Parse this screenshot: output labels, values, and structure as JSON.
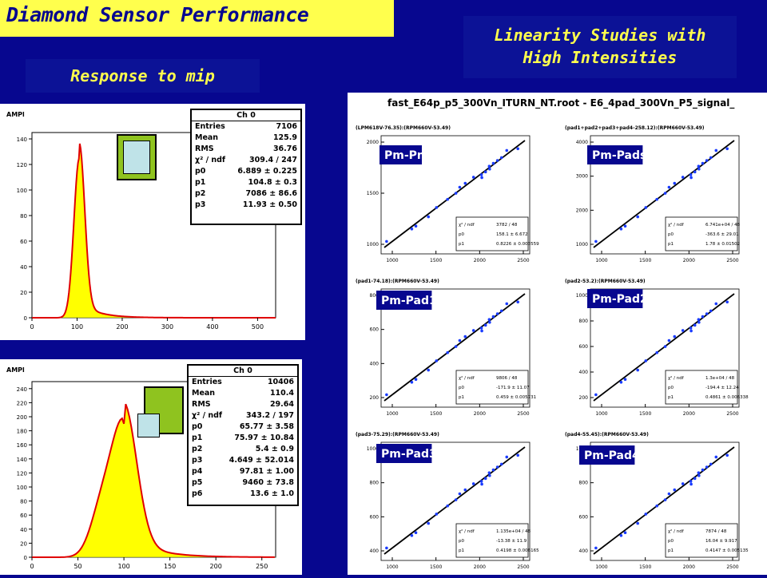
{
  "header": {
    "title": "Diamond Sensor Performance",
    "subtitle": "Response to mip",
    "right_title_line1": "Linearity Studies with",
    "right_title_line2": "High  Intensities"
  },
  "hist1": {
    "y_axis_label": "AMPl",
    "stats_title": "Ch 0",
    "stats": [
      {
        "k": "Entries",
        "v": "7106"
      },
      {
        "k": "Mean",
        "v": "125.9"
      },
      {
        "k": "RMS",
        "v": "36.76"
      },
      {
        "k": "χ² / ndf",
        "v": "309.4 / 247"
      },
      {
        "k": "p0",
        "v": "6.889 ± 0.225"
      },
      {
        "k": "p1",
        "v": "104.8 ± 0.3"
      },
      {
        "k": "p2",
        "v": "7086 ± 86.6"
      },
      {
        "k": "p3",
        "v": "11.93 ± 0.50"
      }
    ],
    "x_ticks": [
      "0",
      "100",
      "200",
      "300",
      "400",
      "500"
    ],
    "y_ticks": [
      "0",
      "20",
      "40",
      "60",
      "80",
      "100",
      "120",
      "140"
    ]
  },
  "hist2": {
    "y_axis_label": "AMPl",
    "stats_title": "Ch 0",
    "stats": [
      {
        "k": "Entries",
        "v": "10406"
      },
      {
        "k": "Mean",
        "v": "110.4"
      },
      {
        "k": "RMS",
        "v": "29.64"
      },
      {
        "k": "χ² / ndf",
        "v": "343.2 / 197"
      },
      {
        "k": "p0",
        "v": "65.77 ± 3.58"
      },
      {
        "k": "p1",
        "v": "75.97 ± 10.84"
      },
      {
        "k": "p2",
        "v": "5.4 ± 0.9"
      },
      {
        "k": "p3",
        "v": "4.649 ± 52.014"
      },
      {
        "k": "p4",
        "v": "97.81 ± 1.00"
      },
      {
        "k": "p5",
        "v": "9460 ± 73.8"
      },
      {
        "k": "p6",
        "v": "13.6 ± 1.0"
      }
    ],
    "x_ticks": [
      "0",
      "50",
      "100",
      "150",
      "200",
      "250"
    ],
    "y_ticks": [
      "0",
      "20",
      "40",
      "60",
      "80",
      "100",
      "120",
      "140",
      "160",
      "180",
      "200",
      "220",
      "240"
    ]
  },
  "scatter_panel": {
    "header_text": "fast_E64p_p5_300Vn_ITURN_NT.root - E6_4pad_300Vn_P5_signal_",
    "plots": [
      {
        "label": "Pm-Pm",
        "expr": "(LPM618V-76.35):(RPM660V-53.49)",
        "fit": [
          {
            "k": "χ² / ndf",
            "v": "3782 / 48"
          },
          {
            "k": "p0",
            "v": "158.1 ± 6.672"
          },
          {
            "k": "p1",
            "v": "0.8226 ± 0.003559"
          }
        ],
        "y_ticks": [
          "1000",
          "1500",
          "2000"
        ]
      },
      {
        "label": "Pm-Pads",
        "expr": "(pad1+pad2+pad3+pad4-258.12):(RPM660V-53.49)",
        "fit": [
          {
            "k": "χ² / ndf",
            "v": "6.741e+04 / 48"
          },
          {
            "k": "p0",
            "v": "-363.6 ± 29.01"
          },
          {
            "k": "p1",
            "v": "1.78 ± 0.01502"
          }
        ],
        "y_ticks": [
          "1000",
          "2000",
          "3000",
          "4000"
        ]
      },
      {
        "label": "Pm-Pad1",
        "expr": "(pad1-74.18):(RPM660V-53.49)",
        "fit": [
          {
            "k": "χ² / ndf",
            "v": "9806 / 48"
          },
          {
            "k": "p0",
            "v": "-171.9 ± 11.07"
          },
          {
            "k": "p1",
            "v": "0.459 ± 0.005731"
          }
        ],
        "y_ticks": [
          "200",
          "400",
          "600",
          "800"
        ]
      },
      {
        "label": "Pm-Pad2",
        "expr": "(pad2-53.2):(RPM660V-53.49)",
        "fit": [
          {
            "k": "χ² / ndf",
            "v": "1.3e+04 / 48"
          },
          {
            "k": "p0",
            "v": "-194.4 ± 12.24"
          },
          {
            "k": "p1",
            "v": "0.4861 ± 0.006338"
          }
        ],
        "y_ticks": [
          "200",
          "400",
          "600",
          "800",
          "1000"
        ]
      },
      {
        "label": "Pm-Pad3",
        "expr": "(pad3-75.29):(RPM660V-53.49)",
        "fit": [
          {
            "k": "χ² / ndf",
            "v": "1.135e+04 / 48"
          },
          {
            "k": "p0",
            "v": "-13.38 ± 11.9"
          },
          {
            "k": "p1",
            "v": "0.4198 ± 0.006165"
          }
        ],
        "y_ticks": [
          "400",
          "600",
          "800",
          "1000"
        ]
      },
      {
        "label": "Pm-Pad4",
        "expr": "(pad4-55.45):(RPM660V-53.49)",
        "fit": [
          {
            "k": "χ² / ndf",
            "v": "7874 / 48"
          },
          {
            "k": "p0",
            "v": "16.04 ± 9.917"
          },
          {
            "k": "p1",
            "v": "0.4147 ± 0.005135"
          }
        ],
        "y_ticks": [
          "400",
          "600",
          "800",
          "1000"
        ]
      }
    ],
    "x_ticks": [
      "1000",
      "1500",
      "2000",
      "2500"
    ]
  }
}
